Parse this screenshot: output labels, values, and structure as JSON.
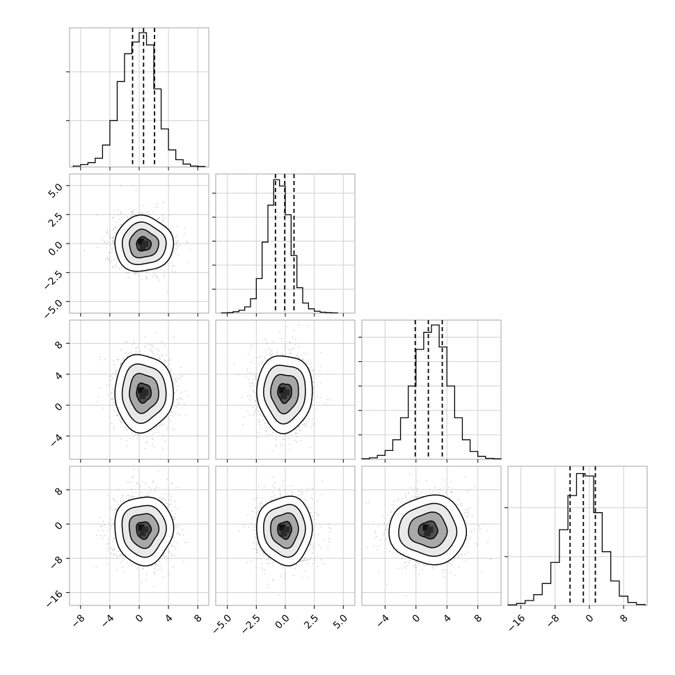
{
  "chart_data": {
    "type": "corner",
    "parameters": 4,
    "axes": [
      {
        "range": [
          -9.5,
          9.5
        ],
        "ticks": [
          -8,
          -4,
          0,
          4,
          8
        ],
        "tick_labels": [
          "−8",
          "−4",
          "0",
          "4",
          "8"
        ],
        "quantiles": [
          -0.9,
          0.6,
          2.1
        ]
      },
      {
        "range": [
          -6.0,
          6.0
        ],
        "ticks": [
          -5.0,
          -2.5,
          0.0,
          2.5,
          5.0
        ],
        "tick_labels": [
          "−5.0",
          "−2.5",
          "0.0",
          "2.5",
          "5.0"
        ],
        "quantiles": [
          -0.85,
          -0.05,
          0.75
        ]
      },
      {
        "range": [
          -7.0,
          11.0
        ],
        "ticks": [
          -4,
          0,
          4,
          8
        ],
        "tick_labels": [
          "−4",
          "0",
          "4",
          "8"
        ],
        "quantiles": [
          -0.1,
          1.6,
          3.4
        ]
      },
      {
        "range": [
          -19.0,
          13.5
        ],
        "ticks": [
          -16,
          -8,
          0,
          8
        ],
        "tick_labels": [
          "−16",
          "−8",
          "0",
          "8"
        ],
        "quantiles": [
          -4.5,
          -1.4,
          1.4
        ]
      }
    ],
    "histograms": [
      {
        "bins": [
          -8.5,
          -7.5,
          -6.5,
          -5.5,
          -4.5,
          -3.5,
          -2.5,
          -1.5,
          -0.5,
          0.5,
          1.5,
          2.5,
          3.5,
          4.5,
          5.5,
          6.5,
          7.5,
          8.5
        ],
        "counts": [
          0.2,
          0.5,
          0.9,
          1.8,
          4.5,
          9.5,
          17.5,
          23.2,
          25.6,
          27.5,
          25.0,
          16.0,
          7.8,
          3.5,
          1.5,
          0.6,
          0.2,
          0.1
        ],
        "ymax": 28.5,
        "ticks": [
          9.5,
          19.5
        ]
      },
      {
        "bins": [
          -5.25,
          -4.75,
          -4.25,
          -3.75,
          -3.25,
          -2.75,
          -2.25,
          -1.75,
          -1.25,
          -0.75,
          -0.25,
          0.25,
          0.75,
          1.25,
          1.75,
          2.25,
          2.75,
          3.25,
          3.75,
          4.25
        ],
        "counts": [
          0.05,
          0.1,
          0.3,
          0.6,
          1.3,
          3.0,
          7.2,
          14.8,
          22.5,
          27.8,
          26.5,
          20.5,
          12.0,
          5.3,
          2.1,
          0.9,
          0.4,
          0.2,
          0.1,
          0.05
        ],
        "ymax": 29.0,
        "ticks": [
          5.0,
          10.0,
          15.0,
          20.0,
          25.0
        ]
      },
      {
        "bins": [
          -6.5,
          -5.5,
          -4.5,
          -3.5,
          -2.5,
          -1.5,
          -0.5,
          0.5,
          1.5,
          2.5,
          3.5,
          4.5,
          5.5,
          6.5,
          7.5,
          8.5,
          9.5,
          10.5
        ],
        "counts": [
          0.1,
          0.3,
          0.8,
          1.8,
          4.0,
          8.5,
          15.0,
          22.5,
          26.0,
          27.5,
          23.0,
          15.0,
          8.5,
          4.0,
          1.6,
          0.6,
          0.2,
          0.1
        ],
        "ymax": 28.5,
        "ticks": [
          5.0,
          10.0,
          15.0,
          20.0,
          25.0
        ]
      },
      {
        "bins": [
          -18,
          -16,
          -14,
          -12,
          -10,
          -8,
          -6,
          -4,
          -2,
          0,
          2,
          4,
          6,
          8,
          10,
          12
        ],
        "counts": [
          0.1,
          0.4,
          1.0,
          2.2,
          4.5,
          8.8,
          15.5,
          22.5,
          27.0,
          26.5,
          19.0,
          11.0,
          5.0,
          1.9,
          0.6,
          0.2
        ],
        "ymax": 28.5,
        "ticks": [
          10.0,
          20.0
        ]
      }
    ],
    "centers": [
      0.6,
      -0.05,
      1.6,
      -1.4
    ],
    "spreads": [
      2.0,
      1.2,
      2.5,
      4.0
    ]
  }
}
